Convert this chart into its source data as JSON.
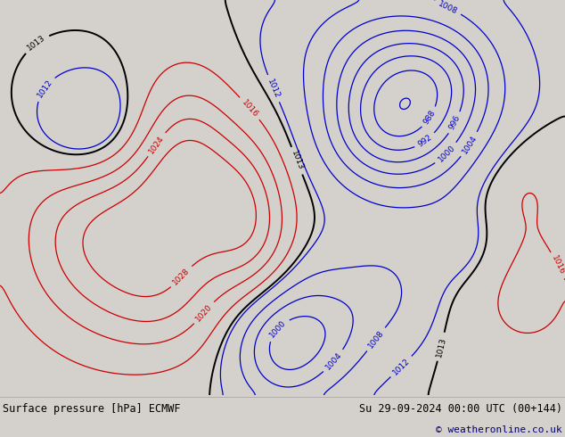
{
  "title_left": "Surface pressure [hPa] ECMWF",
  "title_right": "Su 29-09-2024 00:00 UTC (00+144)",
  "copyright": "© weatheronline.co.uk",
  "bg_color": "#d4d0cc",
  "land_color": "#b8e8a0",
  "ocean_color": "#d4d0cc",
  "footer_bg": "#e0ddd8",
  "black_contour_color": "#000000",
  "blue_contour_color": "#0000cc",
  "red_contour_color": "#cc0000",
  "contour_label_fontsize": 6.5,
  "footer_fontsize": 8.5,
  "copyright_fontsize": 8,
  "copyright_color": "#000080",
  "figsize": [
    6.34,
    4.9
  ],
  "dpi": 100,
  "lon_min": -170,
  "lon_max": -50,
  "lat_min": 15,
  "lat_max": 80
}
